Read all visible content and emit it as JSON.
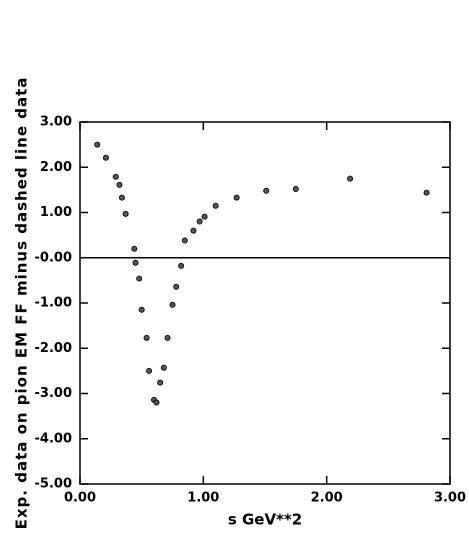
{
  "chart_data": {
    "type": "scatter",
    "ylabel": "Exp. data on pion EM FF minus dashed line data",
    "xlabel": "s GeV**2",
    "xlim": [
      0,
      3
    ],
    "ylim": [
      -5,
      3
    ],
    "xticks": [
      {
        "value": 0,
        "label": "0.00"
      },
      {
        "value": 1,
        "label": "1.00"
      },
      {
        "value": 2,
        "label": "2.00"
      },
      {
        "value": 3,
        "label": "3.00"
      }
    ],
    "yticks": [
      {
        "value": 3,
        "label": "3.00"
      },
      {
        "value": 2,
        "label": "2.00"
      },
      {
        "value": 1,
        "label": "1.00"
      },
      {
        "value": 0,
        "label": "-0.00"
      },
      {
        "value": -1,
        "label": "-1.00"
      },
      {
        "value": -2,
        "label": "-2.00"
      },
      {
        "value": -3,
        "label": "-3.00"
      },
      {
        "value": -4,
        "label": "-4.00"
      },
      {
        "value": -5,
        "label": "-5.00"
      }
    ],
    "color": "#555555",
    "x": [
      0.14,
      0.21,
      0.29,
      0.32,
      0.34,
      0.37,
      0.44,
      0.45,
      0.48,
      0.5,
      0.54,
      0.56,
      0.6,
      0.62,
      0.65,
      0.68,
      0.71,
      0.75,
      0.78,
      0.82,
      0.85,
      0.92,
      0.97,
      1.01,
      1.1,
      1.27,
      1.51,
      1.75,
      2.19,
      2.81
    ],
    "values": [
      2.5,
      2.21,
      1.79,
      1.61,
      1.33,
      0.97,
      0.2,
      -0.11,
      -0.46,
      -1.15,
      -1.77,
      -2.5,
      -3.14,
      -3.2,
      -2.76,
      -2.43,
      -1.77,
      -1.04,
      -0.64,
      -0.18,
      0.38,
      0.6,
      0.8,
      0.91,
      1.15,
      1.33,
      1.48,
      1.52,
      1.75,
      1.44
    ]
  }
}
